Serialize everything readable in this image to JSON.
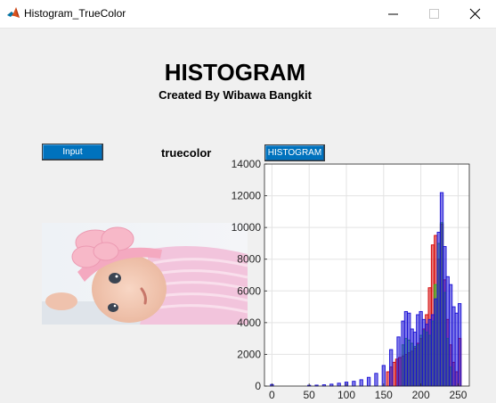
{
  "window": {
    "title": "Histogram_TrueColor",
    "icon": "matlab-icon",
    "controls": [
      "minimize-icon",
      "maximize-icon",
      "close-icon"
    ]
  },
  "header": {
    "title": "HISTOGRAM",
    "subtitle": "Created By Wibawa Bangkit"
  },
  "controls": {
    "input_label": "Input",
    "image_type_label": "truecolor",
    "histogram_label": "HISTOGRAM"
  },
  "image": {
    "description_icon": "baby-photo"
  },
  "colors": {
    "button_blue": "#0072bd",
    "red_series": "#d40000",
    "green_series": "#22c41c",
    "blue_series": "#1a10d6"
  },
  "chart_data": {
    "type": "bar",
    "title": "",
    "xlabel": "",
    "ylabel": "",
    "xlim": [
      -10,
      265
    ],
    "ylim": [
      0,
      14000
    ],
    "xticks": [
      0,
      50,
      100,
      150,
      200,
      250
    ],
    "yticks": [
      0,
      2000,
      4000,
      6000,
      8000,
      10000,
      12000,
      14000
    ],
    "grid": true,
    "bin_width": 4,
    "series": [
      {
        "color": "#d40000",
        "x": [
          156,
          160,
          164,
          168,
          172,
          176,
          180,
          184,
          188,
          192,
          196,
          200,
          204,
          208,
          212,
          216,
          220,
          224,
          228,
          232,
          236,
          240,
          244,
          248,
          252
        ],
        "values": [
          900,
          1200,
          1500,
          1700,
          1800,
          1900,
          2000,
          2100,
          2200,
          2400,
          2700,
          3000,
          3600,
          4500,
          6200,
          8900,
          9500,
          8000,
          10200,
          6700,
          4200,
          2600,
          1500,
          900,
          3000
        ]
      },
      {
        "color": "#22c41c",
        "x": [
          176,
          180,
          184,
          188,
          192,
          196,
          200,
          204,
          208,
          212,
          216,
          220,
          224,
          228,
          232,
          236,
          240
        ],
        "values": [
          2600,
          3000,
          2900,
          2700,
          2500,
          2600,
          3200,
          3500,
          3400,
          3200,
          4100,
          6400,
          9000,
          10300,
          5900,
          3000,
          1200
        ]
      },
      {
        "color": "#1a10d6",
        "x": [
          0,
          50,
          60,
          70,
          80,
          90,
          100,
          110,
          120,
          130,
          140,
          150,
          160,
          170,
          176,
          180,
          184,
          188,
          192,
          196,
          200,
          204,
          208,
          212,
          216,
          220,
          224,
          228,
          232,
          236,
          240,
          244,
          248,
          252
        ],
        "values": [
          100,
          50,
          60,
          80,
          120,
          180,
          250,
          300,
          400,
          550,
          800,
          1300,
          2300,
          3100,
          4100,
          4700,
          4600,
          3600,
          3400,
          4500,
          4700,
          4200,
          3900,
          4200,
          4500,
          5500,
          9700,
          12200,
          8800,
          6900,
          6400,
          5000,
          4600,
          5200
        ]
      }
    ]
  }
}
